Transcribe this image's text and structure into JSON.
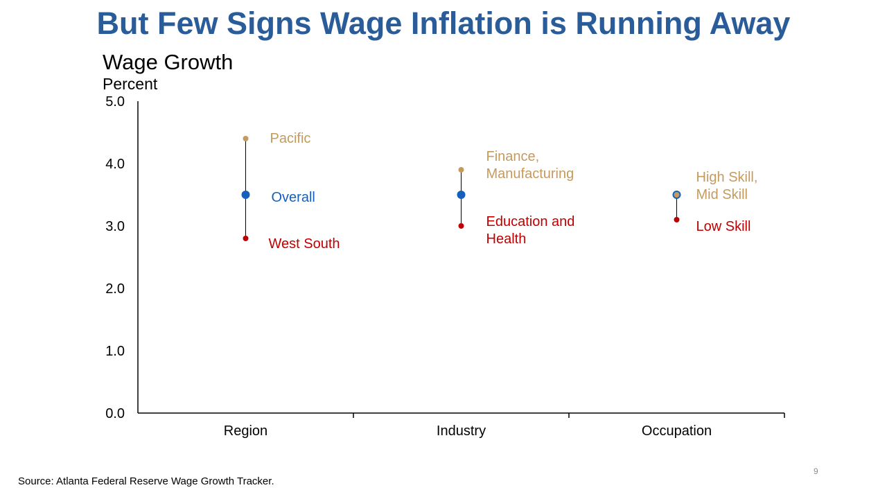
{
  "slide": {
    "title": "But Few Signs Wage Inflation is Running Away",
    "source": "Source: Atlanta Federal Reserve Wage Growth Tracker.",
    "page_number": "9"
  },
  "colors": {
    "title": "#2a5c99",
    "overall": "#1560bd",
    "high": "#c49a5e",
    "low": "#c00000",
    "axis": "#000000"
  },
  "chart_data": {
    "type": "scatter",
    "title": "Wage Growth",
    "ylabel": "Percent",
    "xlabel": "",
    "ylim": [
      0,
      5
    ],
    "yticks": [
      "0.0",
      "1.0",
      "2.0",
      "3.0",
      "4.0",
      "5.0"
    ],
    "categories": [
      "Region",
      "Industry",
      "Occupation"
    ],
    "series": [
      {
        "role": "high",
        "values": [
          4.4,
          3.9,
          3.5
        ],
        "labels": [
          [
            "Pacific"
          ],
          [
            "Finance,",
            "Manufacturing"
          ],
          [
            "High Skill,",
            "Mid Skill"
          ]
        ]
      },
      {
        "role": "overall",
        "values": [
          3.5,
          3.5,
          3.5
        ],
        "labels": [
          [
            "Overall"
          ],
          [],
          []
        ]
      },
      {
        "role": "low",
        "values": [
          2.8,
          3.0,
          3.1
        ],
        "labels": [
          [
            "West South"
          ],
          [
            "Education and",
            "Health"
          ],
          [
            "Low Skill"
          ]
        ]
      }
    ],
    "grid": false,
    "legend": "none"
  }
}
